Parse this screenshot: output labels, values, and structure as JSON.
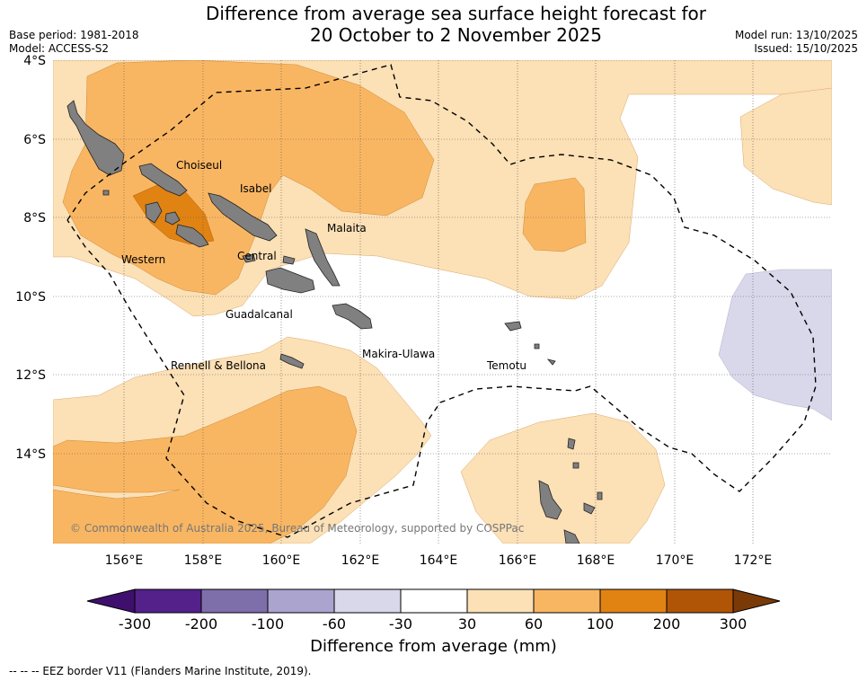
{
  "title_line1": "Difference from average sea surface height forecast for",
  "title_line2": "20 October to 2 November 2025",
  "meta_left": [
    "Base period: 1981-2018",
    "Model: ACCESS-S2"
  ],
  "meta_right": [
    "Model run: 13/10/2025",
    "Issued: 15/10/2025"
  ],
  "lat_labels": [
    "4°S",
    "6°S",
    "8°S",
    "10°S",
    "12°S",
    "14°S"
  ],
  "lon_labels": [
    "156°E",
    "158°E",
    "160°E",
    "162°E",
    "164°E",
    "166°E",
    "168°E",
    "170°E",
    "172°E"
  ],
  "places": [
    "Choiseul",
    "Isabel",
    "Malaita",
    "Central",
    "Western",
    "Guadalcanal",
    "Makira-Ulawa",
    "Rennell & Bellona",
    "Temotu"
  ],
  "copyright": "© Commonwealth of Australia 2025, Bureau of Meteorology, supported by COSPPac",
  "colorbar": {
    "ticks": [
      "-300",
      "-200",
      "-100",
      "-60",
      "-30",
      "30",
      "60",
      "100",
      "200",
      "300"
    ],
    "colors": [
      "#3f0f6e",
      "#54208a",
      "#7e6fab",
      "#aba4cf",
      "#d8d8ea",
      "#ffffff",
      "#fce0b6",
      "#f9b662",
      "#e08313",
      "#b05506",
      "#7a3a08"
    ],
    "title": "Difference from average (mm)"
  },
  "footer": "--  --  -- EEZ border V11 (Flanders Marine Institute, 2019)."
}
